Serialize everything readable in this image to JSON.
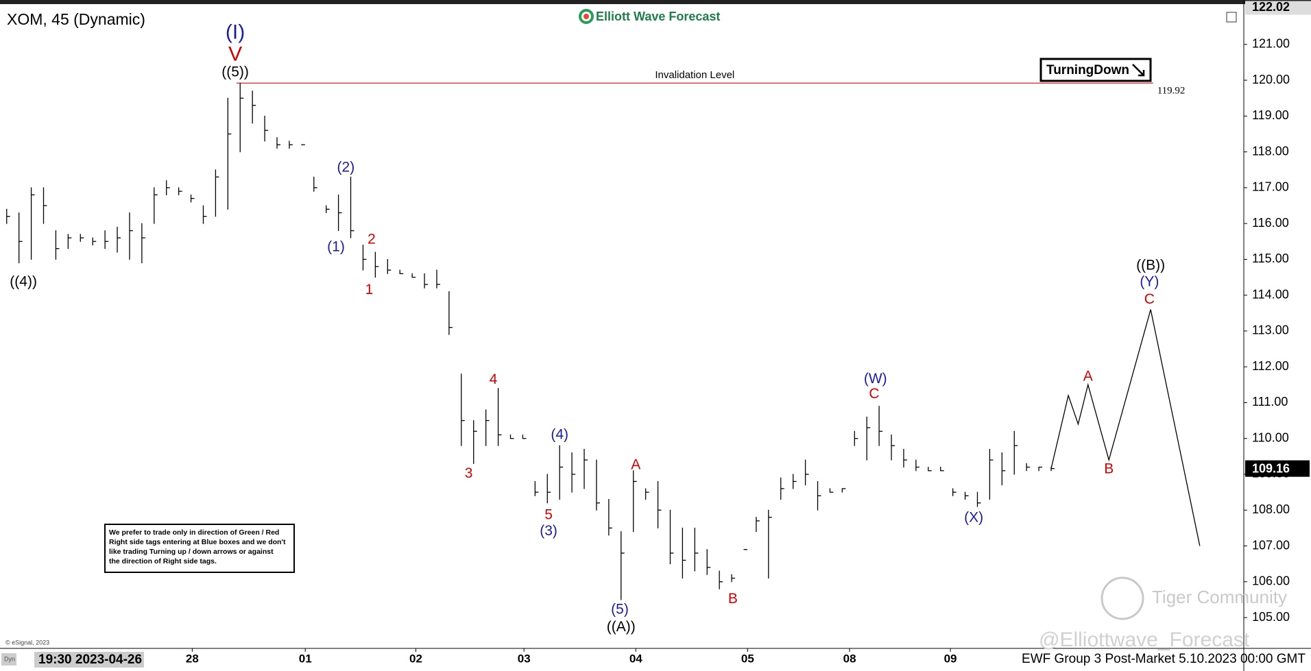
{
  "chart_data": {
    "type": "ohlc",
    "title": "XOM, 45 (Dynamic)",
    "brand": "Elliott Wave Forecast",
    "signal": "TurningDown",
    "note": [
      "We prefer to trade only in direction of Green / Red",
      "Right side tags entering at Blue boxes and we don't",
      "like trading Turning up / down arrows or against",
      "the direction of Right side tags."
    ],
    "copyright": "© eSignal, 2023",
    "mode_label": "Dyn",
    "cursor_label": "19:30 2023-04-26",
    "footer": "EWF Group 3 Post-Market 5.10.2023 00:00 GMT",
    "watermarks": [
      "Tiger Community",
      "@Elliottwave_Forecast"
    ],
    "xlim": [
      -0.544,
      100.68
    ],
    "ylim": [
      104.14,
      122.24
    ],
    "xticks": [
      {
        "value": 15.1,
        "label": "28"
      },
      {
        "value": 24.3,
        "label": "01"
      },
      {
        "value": 33.3,
        "label": "02"
      },
      {
        "value": 42.1,
        "label": "03"
      },
      {
        "value": 51.2,
        "label": "04"
      },
      {
        "value": 60.3,
        "label": "05"
      },
      {
        "value": 68.6,
        "label": "08"
      },
      {
        "value": 76.8,
        "label": "09"
      }
    ],
    "yticks": [
      {
        "value": 105,
        "label": "105.00"
      },
      {
        "value": 106,
        "label": "106.00"
      },
      {
        "value": 107,
        "label": "107.00"
      },
      {
        "value": 108,
        "label": "108.00"
      },
      {
        "value": 109,
        "label": "109.00"
      },
      {
        "value": 110,
        "label": "110.00"
      },
      {
        "value": 111,
        "label": "111.00"
      },
      {
        "value": 112,
        "label": "112.00"
      },
      {
        "value": 113,
        "label": "113.00"
      },
      {
        "value": 114,
        "label": "114.00"
      },
      {
        "value": 115,
        "label": "115.00"
      },
      {
        "value": 116,
        "label": "116.00"
      },
      {
        "value": 117,
        "label": "117.00"
      },
      {
        "value": 118,
        "label": "118.00"
      },
      {
        "value": 119,
        "label": "119.00"
      },
      {
        "value": 120,
        "label": "120.00"
      },
      {
        "value": 121,
        "label": "121.00"
      }
    ],
    "top_price": 122.02,
    "last_price": 109.16,
    "color": "#000000",
    "high": [
      116.4,
      116.3,
      117.0,
      117.0,
      115.8,
      115.7,
      115.7,
      115.6,
      115.8,
      115.9,
      116.3,
      116.0,
      117.0,
      117.2,
      117.0,
      116.8,
      116.5,
      117.5,
      119.5,
      119.92,
      119.7,
      119.0,
      118.4,
      118.3,
      118.2,
      117.3,
      116.5,
      116.8,
      117.3,
      115.4,
      115.2,
      115.0,
      114.7,
      114.6,
      114.6,
      114.7,
      114.1,
      111.8,
      110.5,
      110.8,
      111.4,
      110.1,
      110.1,
      108.8,
      109.0,
      109.8,
      109.6,
      109.7,
      109.4,
      108.3,
      107.4,
      109.1,
      108.6,
      108.8,
      108.0,
      107.5,
      107.5,
      106.9,
      106.3,
      106.2,
      106.9,
      107.8,
      108.0,
      108.9,
      109.0,
      109.4,
      108.8,
      108.6,
      108.6,
      110.2,
      110.6,
      110.9,
      110.1,
      109.7,
      109.4,
      109.2,
      109.2,
      108.6,
      108.5,
      108.5,
      109.7,
      109.6,
      110.2,
      109.3,
      109.2,
      109.2
    ],
    "low": [
      116.0,
      114.9,
      115.0,
      116.0,
      115.0,
      115.3,
      115.5,
      115.4,
      115.3,
      115.2,
      115.0,
      114.9,
      116.0,
      116.8,
      116.8,
      116.6,
      116.0,
      116.2,
      116.4,
      118.0,
      118.8,
      118.3,
      118.1,
      118.1,
      118.2,
      116.9,
      116.3,
      115.8,
      115.6,
      114.7,
      114.5,
      114.6,
      114.6,
      114.5,
      114.2,
      114.2,
      112.9,
      109.8,
      109.3,
      109.8,
      109.8,
      110.0,
      110.0,
      108.4,
      108.2,
      108.3,
      108.5,
      108.6,
      108.0,
      107.3,
      105.5,
      107.4,
      108.3,
      107.5,
      106.5,
      106.1,
      106.3,
      106.2,
      105.8,
      106.0,
      106.9,
      107.4,
      106.1,
      108.3,
      108.6,
      108.7,
      108.0,
      108.5,
      108.5,
      109.8,
      109.4,
      109.8,
      109.4,
      109.2,
      109.1,
      109.1,
      109.1,
      108.4,
      108.3,
      108.1,
      108.3,
      108.7,
      109.0,
      109.1,
      109.1,
      109.1
    ],
    "close": [
      116.2,
      115.5,
      116.8,
      116.5,
      115.3,
      115.6,
      115.6,
      115.5,
      115.5,
      115.6,
      115.8,
      115.6,
      116.8,
      117.0,
      116.9,
      116.7,
      116.2,
      117.3,
      118.5,
      119.5,
      119.3,
      118.6,
      118.2,
      118.2,
      118.2,
      117.0,
      116.4,
      116.3,
      115.8,
      115.0,
      114.8,
      114.7,
      114.6,
      114.5,
      114.3,
      114.3,
      113.1,
      110.5,
      110.2,
      110.5,
      110.1,
      110.0,
      110.0,
      108.5,
      108.5,
      109.2,
      109.0,
      109.4,
      108.2,
      107.5,
      106.8,
      108.8,
      108.5,
      108.0,
      106.8,
      106.6,
      106.8,
      106.4,
      106.0,
      106.1,
      106.9,
      107.7,
      107.8,
      108.6,
      108.8,
      109.0,
      108.4,
      108.5,
      108.6,
      110.0,
      110.3,
      110.2,
      109.8,
      109.4,
      109.2,
      109.1,
      109.1,
      108.5,
      108.4,
      108.2,
      109.4,
      109.1,
      109.8,
      109.2,
      109.2,
      109.16
    ],
    "projection": {
      "x": [
        85,
        86.4,
        87.2,
        88.0,
        89.7,
        93.1,
        97.1
      ],
      "y": [
        109.16,
        111.2,
        110.4,
        111.5,
        109.4,
        113.6,
        107.0
      ],
      "color": "#000000"
    },
    "invalidation": {
      "label": "Invalidation Level",
      "value": 119.92,
      "x": [
        18.7,
        93.3
      ],
      "color": "#e0202a"
    },
    "annotations": [
      {
        "text": "(I)",
        "x": 18.6,
        "y": 121.31,
        "color": "#1a1aa6"
      },
      {
        "text": "V",
        "x": 18.6,
        "y": 120.7,
        "color": "#d40000"
      },
      {
        "text": "((5))",
        "x": 18.6,
        "y": 120.21,
        "color": "#000000"
      },
      {
        "text": "((4))",
        "x": 1.36,
        "y": 114.36,
        "color": "#000000"
      },
      {
        "text": "(2)",
        "x": 27.6,
        "y": 117.55,
        "color": "#1a1aa6"
      },
      {
        "text": "(1)",
        "x": 26.8,
        "y": 115.33,
        "color": "#1a1aa6"
      },
      {
        "text": "2",
        "x": 29.7,
        "y": 115.54,
        "color": "#d40000"
      },
      {
        "text": "1",
        "x": 29.5,
        "y": 114.14,
        "color": "#d40000"
      },
      {
        "text": "3",
        "x": 37.6,
        "y": 109.01,
        "color": "#d40000"
      },
      {
        "text": "4",
        "x": 39.6,
        "y": 111.63,
        "color": "#d40000"
      },
      {
        "text": "(4)",
        "x": 45.0,
        "y": 110.09,
        "color": "#1a1aa6"
      },
      {
        "text": "5",
        "x": 44.1,
        "y": 107.85,
        "color": "#d40000"
      },
      {
        "text": "(3)",
        "x": 44.1,
        "y": 107.4,
        "color": "#1a1aa6"
      },
      {
        "text": "(5)",
        "x": 49.9,
        "y": 105.21,
        "color": "#1a1aa6"
      },
      {
        "text": "((A))",
        "x": 50.0,
        "y": 104.72,
        "color": "#000000"
      },
      {
        "text": "A",
        "x": 51.2,
        "y": 109.25,
        "color": "#d40000"
      },
      {
        "text": "B",
        "x": 59.1,
        "y": 105.51,
        "color": "#d40000"
      },
      {
        "text": "(W)",
        "x": 70.7,
        "y": 111.65,
        "color": "#1a1aa6"
      },
      {
        "text": "C",
        "x": 70.6,
        "y": 111.23,
        "color": "#d40000"
      },
      {
        "text": "(X)",
        "x": 78.7,
        "y": 107.78,
        "color": "#1a1aa6"
      },
      {
        "text": "A",
        "x": 88.0,
        "y": 111.72,
        "color": "#d40000"
      },
      {
        "text": "B",
        "x": 89.7,
        "y": 109.13,
        "color": "#d40000"
      },
      {
        "text": "((B))",
        "x": 93.1,
        "y": 114.82,
        "color": "#000000"
      },
      {
        "text": "(Y)",
        "x": 93.0,
        "y": 114.36,
        "color": "#1a1aa6"
      },
      {
        "text": "C",
        "x": 93.0,
        "y": 113.87,
        "color": "#d40000"
      }
    ]
  }
}
